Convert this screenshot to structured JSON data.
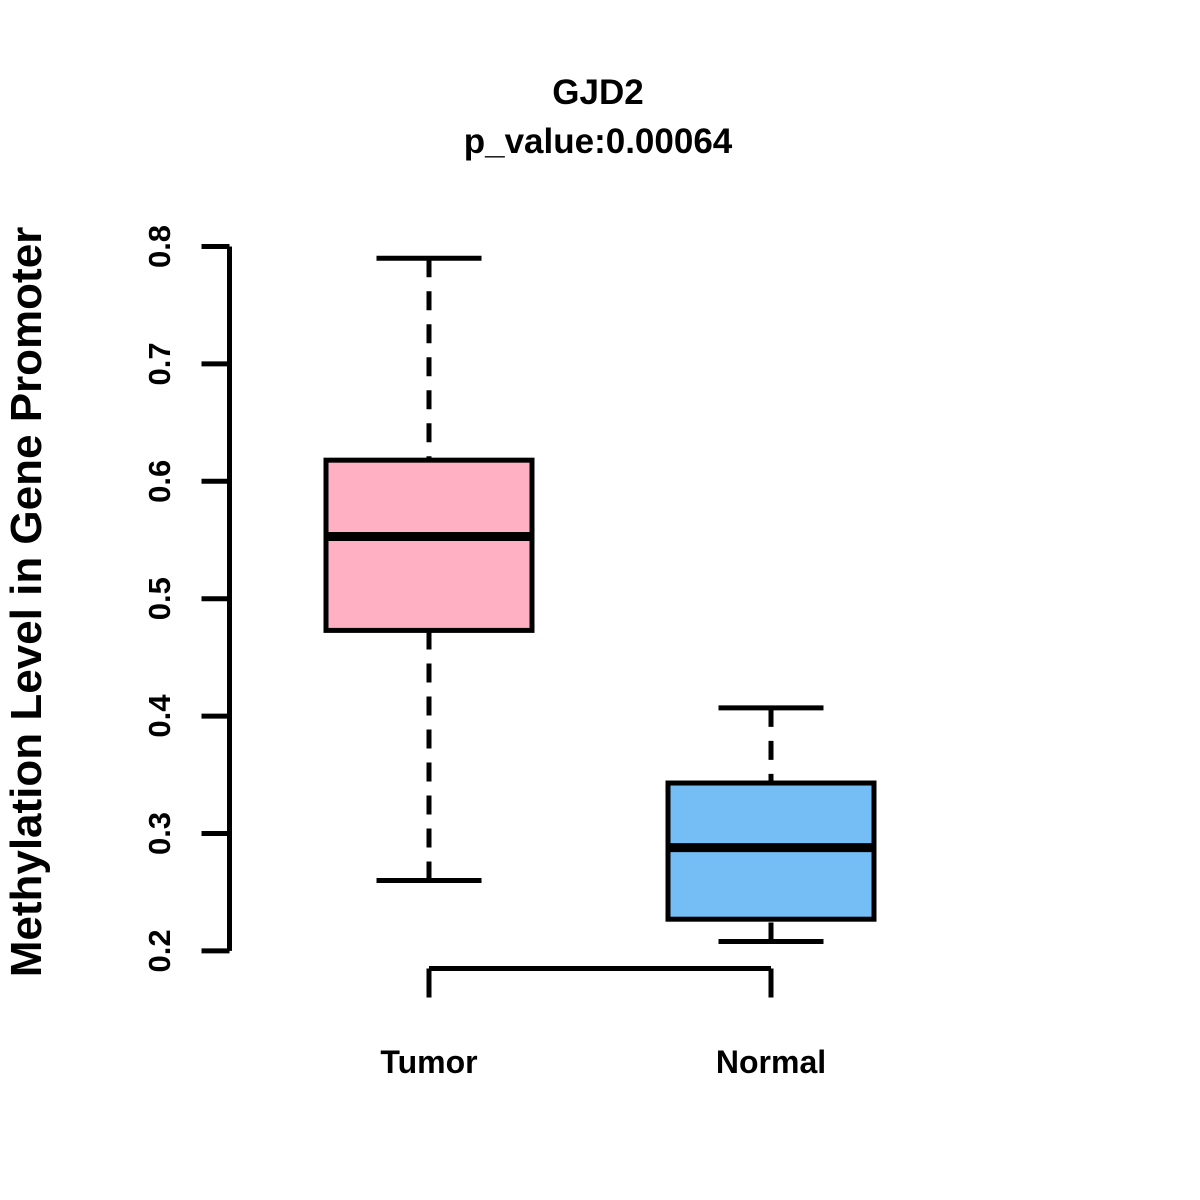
{
  "chart_data": {
    "type": "boxplot",
    "title": "GJD2",
    "subtitle": "p_value:0.00064",
    "ylabel": "Methylation Level in Gene Promoter",
    "xlabel": "",
    "ylim": [
      0.2,
      0.8
    ],
    "yticks": [
      "0.2",
      "0.3",
      "0.4",
      "0.5",
      "0.6",
      "0.7",
      "0.8"
    ],
    "grid": false,
    "legend": "none",
    "groups": [
      {
        "label": "Tumor",
        "color": "#FFB1C3",
        "whisker_low": 0.26,
        "q1": 0.473,
        "median": 0.553,
        "q3": 0.618,
        "whisker_high": 0.79
      },
      {
        "label": "Normal",
        "color": "#75BEF5",
        "whisker_low": 0.208,
        "q1": 0.227,
        "median": 0.288,
        "q3": 0.343,
        "whisker_high": 0.407
      }
    ]
  },
  "colors": {
    "tumor_fill": "#FFB1C3",
    "normal_fill": "#75BEF5",
    "foreground": "#000000",
    "background": "#FFFFFF"
  }
}
